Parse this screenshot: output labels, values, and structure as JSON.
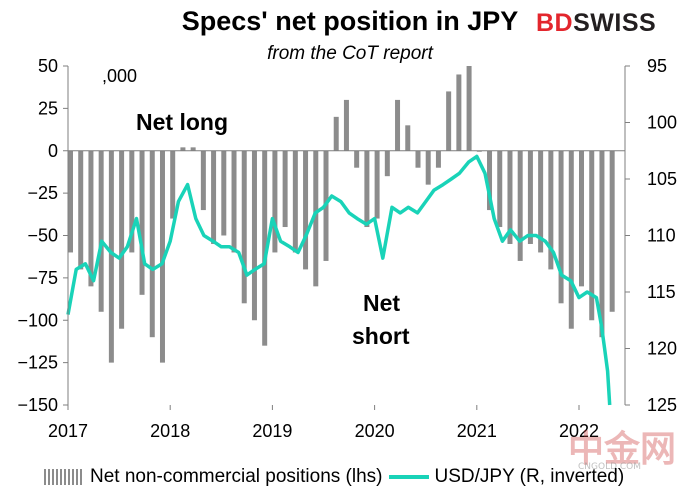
{
  "header": {
    "title": "Specs' net position in JPY",
    "subtitle": "from the CoT report",
    "brand": "BDSWISS"
  },
  "colors": {
    "bars": "#8c8c8c",
    "line": "#19d3b8",
    "brand_red": "#e3262d"
  },
  "watermark": {
    "text": "中金网",
    "subtext": "CNGOLD.COM"
  },
  "chart_data": {
    "type": "bar",
    "title": "Specs' net position in JPY",
    "subtitle": "from the CoT report",
    "units_label": ",000",
    "annotations": [
      "Net long",
      "Net",
      "short"
    ],
    "x_tick_labels": [
      "2017",
      "2018",
      "2019",
      "2020",
      "2021",
      "2022"
    ],
    "y_left": {
      "ylim": [
        -150,
        50
      ],
      "ticks": [
        50,
        25,
        0,
        -25,
        -50,
        -75,
        -100,
        -125,
        -150
      ]
    },
    "y_right": {
      "ylim": [
        95,
        125
      ],
      "inverted": true,
      "ticks": [
        95,
        100,
        105,
        110,
        115,
        120,
        125
      ]
    },
    "legend": {
      "placement": "bottom"
    },
    "grid": false,
    "series": [
      {
        "name": "Net non-commercial positions (lhs)",
        "type": "bar",
        "axis": "left",
        "x": [
          2017.0,
          2017.1,
          2017.2,
          2017.3,
          2017.4,
          2017.5,
          2017.6,
          2017.7,
          2017.8,
          2017.9,
          2018.0,
          2018.1,
          2018.2,
          2018.3,
          2018.4,
          2018.5,
          2018.6,
          2018.7,
          2018.8,
          2018.9,
          2019.0,
          2019.1,
          2019.2,
          2019.3,
          2019.4,
          2019.5,
          2019.6,
          2019.7,
          2019.8,
          2019.9,
          2020.0,
          2020.1,
          2020.2,
          2020.3,
          2020.4,
          2020.5,
          2020.6,
          2020.7,
          2020.8,
          2020.9,
          2021.0,
          2021.1,
          2021.2,
          2021.3,
          2021.4,
          2021.5,
          2021.6,
          2021.7,
          2021.8,
          2021.9,
          2022.0,
          2022.1,
          2022.2,
          2022.3
        ],
        "values": [
          -60,
          -70,
          -80,
          -95,
          -125,
          -105,
          -60,
          -85,
          -110,
          -125,
          -40,
          2,
          2,
          -35,
          -55,
          -50,
          -60,
          -90,
          -100,
          -115,
          -60,
          -45,
          -60,
          -70,
          -80,
          -65,
          20,
          30,
          -10,
          -45,
          -40,
          -15,
          30,
          15,
          -10,
          -20,
          -10,
          35,
          45,
          50,
          0,
          -35,
          -45,
          -55,
          -65,
          -55,
          -60,
          -70,
          -90,
          -105,
          -80,
          -100,
          -110,
          -95
        ]
      },
      {
        "name": "USD/JPY (R, inverted)",
        "type": "line",
        "axis": "right",
        "x": [
          2017.0,
          2017.08,
          2017.17,
          2017.25,
          2017.33,
          2017.42,
          2017.5,
          2017.58,
          2017.67,
          2017.75,
          2017.83,
          2017.92,
          2018.0,
          2018.08,
          2018.17,
          2018.25,
          2018.33,
          2018.42,
          2018.5,
          2018.58,
          2018.67,
          2018.75,
          2018.83,
          2018.92,
          2019.0,
          2019.08,
          2019.17,
          2019.25,
          2019.33,
          2019.42,
          2019.5,
          2019.58,
          2019.67,
          2019.75,
          2019.83,
          2019.92,
          2020.0,
          2020.08,
          2020.17,
          2020.25,
          2020.33,
          2020.42,
          2020.5,
          2020.58,
          2020.67,
          2020.75,
          2020.83,
          2020.92,
          2021.0,
          2021.08,
          2021.17,
          2021.25,
          2021.33,
          2021.42,
          2021.5,
          2021.58,
          2021.67,
          2021.75,
          2021.83,
          2021.92,
          2022.0,
          2022.08,
          2022.17,
          2022.22,
          2022.25,
          2022.28,
          2022.3
        ],
        "values": [
          117,
          113,
          112.5,
          114,
          110.5,
          111.5,
          112,
          111,
          108.5,
          112.5,
          113,
          112.5,
          110.5,
          107,
          105.5,
          108.5,
          110,
          110.5,
          111,
          111,
          111.5,
          113.5,
          113,
          112.5,
          108.5,
          110.5,
          111,
          111.5,
          110,
          108,
          107.5,
          106.5,
          107,
          108,
          108.5,
          109,
          108.5,
          112,
          107.5,
          108,
          107.5,
          108,
          107,
          106,
          105.5,
          105,
          104.5,
          103.5,
          103,
          104.5,
          108.5,
          110.5,
          109.5,
          110.5,
          110,
          110,
          110.5,
          111.5,
          113.5,
          114,
          115.5,
          115,
          115.5,
          118,
          120,
          122,
          125
        ]
      }
    ]
  }
}
